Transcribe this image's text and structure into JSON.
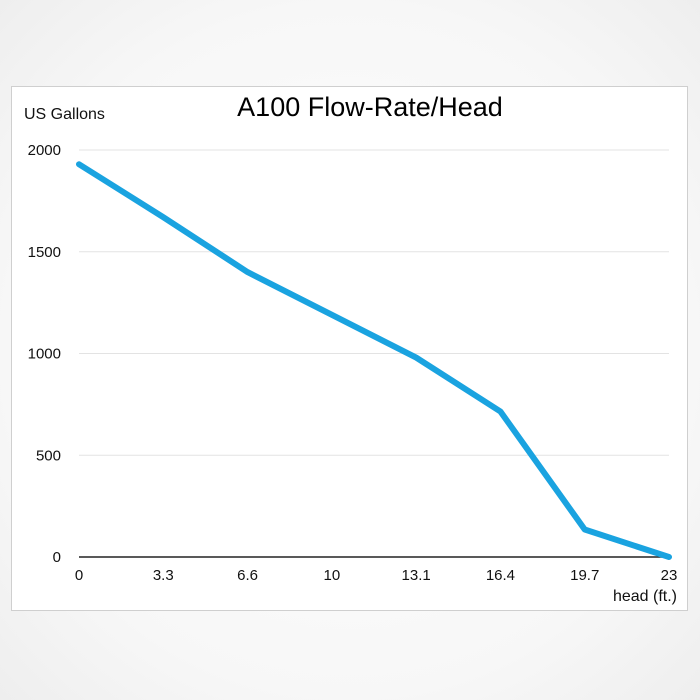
{
  "chart_data": {
    "type": "line",
    "title": "A100 Flow-Rate/Head",
    "ylabel": "US Gallons",
    "xlabel": "head (ft.)",
    "categories": [
      "0",
      "3.3",
      "6.6",
      "10",
      "13.1",
      "16.4",
      "19.7",
      "23"
    ],
    "y_ticks": [
      "0",
      "500",
      "1000",
      "1500",
      "2000"
    ],
    "ylim": [
      0,
      2000
    ],
    "grid": true,
    "legend": "none",
    "series": [
      {
        "values": [
          1930,
          1670,
          1400,
          1190,
          980,
          715,
          135,
          0
        ],
        "color": "#1aa3e0"
      }
    ]
  }
}
